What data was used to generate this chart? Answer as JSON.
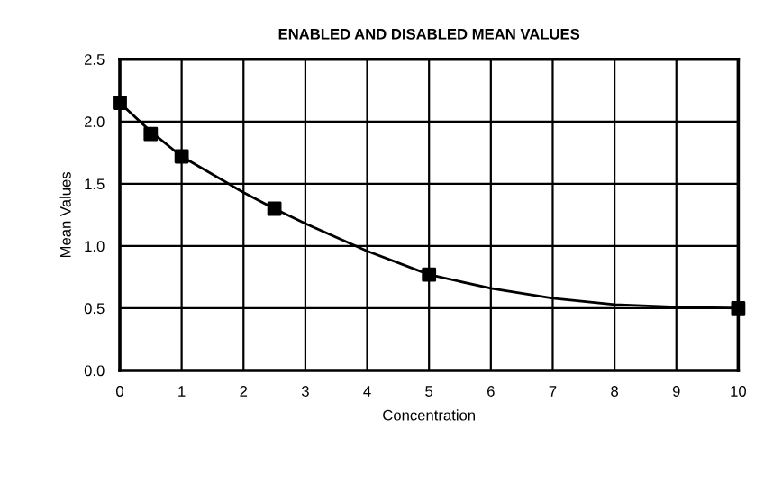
{
  "chart_data": {
    "type": "scatter",
    "title": "ENABLED AND DISABLED MEAN VALUES",
    "xlabel": "Concentration",
    "ylabel": "Mean Values",
    "xlim": [
      0,
      10
    ],
    "xticks": [
      0,
      1,
      2,
      3,
      4,
      5,
      6,
      7,
      8,
      9,
      10
    ],
    "ylim": [
      0,
      2.5
    ],
    "yticks": [
      {
        "value": 0,
        "label": "0.0"
      },
      0.5,
      {
        "value": 1,
        "label": "1.0"
      },
      1.5,
      {
        "value": 2,
        "label": "2.0"
      },
      2.5
    ],
    "grid": true,
    "series": [
      {
        "type": "line",
        "color": "#000000",
        "marker": "none",
        "x": [
          0,
          0.5,
          1,
          2,
          2.5,
          3,
          4,
          5,
          6,
          7,
          8,
          9,
          10
        ],
        "values": [
          2.15,
          1.92,
          1.72,
          1.43,
          1.3,
          1.18,
          0.96,
          0.77,
          0.66,
          0.58,
          0.53,
          0.51,
          0.5
        ]
      },
      {
        "color": "#000000",
        "marker": "square",
        "x": [
          0,
          0.5,
          1,
          2.5,
          5,
          10
        ],
        "values": [
          2.15,
          1.9,
          1.72,
          1.3,
          0.77,
          0.5
        ]
      }
    ]
  }
}
